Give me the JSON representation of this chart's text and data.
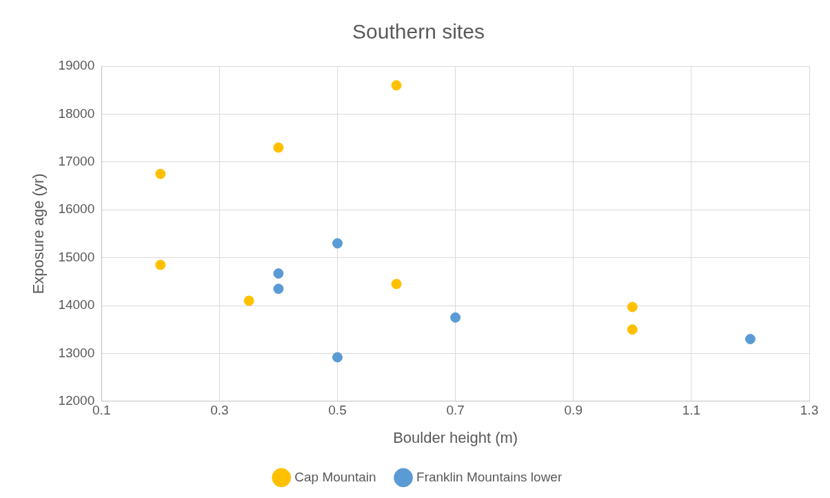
{
  "chart_data": {
    "type": "scatter",
    "title": "Southern sites",
    "xlabel": "Boulder height (m)",
    "ylabel": "Exposure age (yr)",
    "series": [
      {
        "name": "Cap Mountain",
        "color": "#ffc000",
        "x": [
          0.2,
          0.2,
          0.4,
          0.35,
          0.6,
          0.6,
          1.0,
          1.0
        ],
        "values": [
          16750,
          14850,
          17300,
          14100,
          18600,
          14450,
          13970,
          13500
        ]
      },
      {
        "name": "Franklin Mountains lower",
        "color": "#5b9bd5",
        "x": [
          0.4,
          0.4,
          0.5,
          0.5,
          0.7,
          1.2
        ],
        "values": [
          14670,
          14350,
          15300,
          12920,
          13750,
          13300
        ]
      }
    ],
    "xlim": [
      0.1,
      1.3
    ],
    "xticks": [
      0.1,
      0.3,
      0.5,
      0.7,
      0.9,
      1.1,
      1.3
    ],
    "ylim": [
      12000,
      19000
    ],
    "yticks": [
      12000,
      13000,
      14000,
      15000,
      16000,
      17000,
      18000,
      19000
    ],
    "grid": true,
    "legend": "bottom",
    "marker": "circle"
  }
}
